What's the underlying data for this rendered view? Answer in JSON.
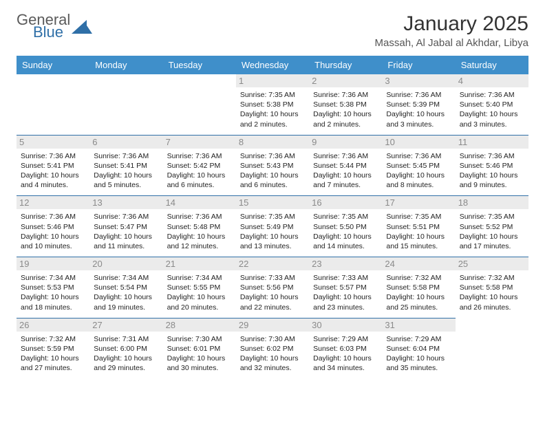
{
  "logo": {
    "general": "General",
    "blue": "Blue",
    "triangle_color": "#2f6fa7"
  },
  "header": {
    "title": "January 2025",
    "location": "Massah, Al Jabal al Akhdar, Libya"
  },
  "colors": {
    "header_bg": "#3f8fca",
    "header_fg": "#ffffff",
    "daynum_bg": "#ebebeb",
    "daynum_fg": "#8a8a8a",
    "row_border": "#2f6fa7",
    "cell_text": "#222222",
    "title_color": "#333333",
    "location_color": "#555555"
  },
  "typography": {
    "title_fontsize": 30,
    "location_fontsize": 15,
    "weekday_fontsize": 13,
    "daynum_fontsize": 13,
    "cell_fontsize": 10.5
  },
  "weekdays": [
    "Sunday",
    "Monday",
    "Tuesday",
    "Wednesday",
    "Thursday",
    "Friday",
    "Saturday"
  ],
  "weeks": [
    [
      null,
      null,
      null,
      {
        "day": "1",
        "sunrise": "Sunrise: 7:35 AM",
        "sunset": "Sunset: 5:38 PM",
        "daylight": "Daylight: 10 hours and 2 minutes."
      },
      {
        "day": "2",
        "sunrise": "Sunrise: 7:36 AM",
        "sunset": "Sunset: 5:38 PM",
        "daylight": "Daylight: 10 hours and 2 minutes."
      },
      {
        "day": "3",
        "sunrise": "Sunrise: 7:36 AM",
        "sunset": "Sunset: 5:39 PM",
        "daylight": "Daylight: 10 hours and 3 minutes."
      },
      {
        "day": "4",
        "sunrise": "Sunrise: 7:36 AM",
        "sunset": "Sunset: 5:40 PM",
        "daylight": "Daylight: 10 hours and 3 minutes."
      }
    ],
    [
      {
        "day": "5",
        "sunrise": "Sunrise: 7:36 AM",
        "sunset": "Sunset: 5:41 PM",
        "daylight": "Daylight: 10 hours and 4 minutes."
      },
      {
        "day": "6",
        "sunrise": "Sunrise: 7:36 AM",
        "sunset": "Sunset: 5:41 PM",
        "daylight": "Daylight: 10 hours and 5 minutes."
      },
      {
        "day": "7",
        "sunrise": "Sunrise: 7:36 AM",
        "sunset": "Sunset: 5:42 PM",
        "daylight": "Daylight: 10 hours and 6 minutes."
      },
      {
        "day": "8",
        "sunrise": "Sunrise: 7:36 AM",
        "sunset": "Sunset: 5:43 PM",
        "daylight": "Daylight: 10 hours and 6 minutes."
      },
      {
        "day": "9",
        "sunrise": "Sunrise: 7:36 AM",
        "sunset": "Sunset: 5:44 PM",
        "daylight": "Daylight: 10 hours and 7 minutes."
      },
      {
        "day": "10",
        "sunrise": "Sunrise: 7:36 AM",
        "sunset": "Sunset: 5:45 PM",
        "daylight": "Daylight: 10 hours and 8 minutes."
      },
      {
        "day": "11",
        "sunrise": "Sunrise: 7:36 AM",
        "sunset": "Sunset: 5:46 PM",
        "daylight": "Daylight: 10 hours and 9 minutes."
      }
    ],
    [
      {
        "day": "12",
        "sunrise": "Sunrise: 7:36 AM",
        "sunset": "Sunset: 5:46 PM",
        "daylight": "Daylight: 10 hours and 10 minutes."
      },
      {
        "day": "13",
        "sunrise": "Sunrise: 7:36 AM",
        "sunset": "Sunset: 5:47 PM",
        "daylight": "Daylight: 10 hours and 11 minutes."
      },
      {
        "day": "14",
        "sunrise": "Sunrise: 7:36 AM",
        "sunset": "Sunset: 5:48 PM",
        "daylight": "Daylight: 10 hours and 12 minutes."
      },
      {
        "day": "15",
        "sunrise": "Sunrise: 7:35 AM",
        "sunset": "Sunset: 5:49 PM",
        "daylight": "Daylight: 10 hours and 13 minutes."
      },
      {
        "day": "16",
        "sunrise": "Sunrise: 7:35 AM",
        "sunset": "Sunset: 5:50 PM",
        "daylight": "Daylight: 10 hours and 14 minutes."
      },
      {
        "day": "17",
        "sunrise": "Sunrise: 7:35 AM",
        "sunset": "Sunset: 5:51 PM",
        "daylight": "Daylight: 10 hours and 15 minutes."
      },
      {
        "day": "18",
        "sunrise": "Sunrise: 7:35 AM",
        "sunset": "Sunset: 5:52 PM",
        "daylight": "Daylight: 10 hours and 17 minutes."
      }
    ],
    [
      {
        "day": "19",
        "sunrise": "Sunrise: 7:34 AM",
        "sunset": "Sunset: 5:53 PM",
        "daylight": "Daylight: 10 hours and 18 minutes."
      },
      {
        "day": "20",
        "sunrise": "Sunrise: 7:34 AM",
        "sunset": "Sunset: 5:54 PM",
        "daylight": "Daylight: 10 hours and 19 minutes."
      },
      {
        "day": "21",
        "sunrise": "Sunrise: 7:34 AM",
        "sunset": "Sunset: 5:55 PM",
        "daylight": "Daylight: 10 hours and 20 minutes."
      },
      {
        "day": "22",
        "sunrise": "Sunrise: 7:33 AM",
        "sunset": "Sunset: 5:56 PM",
        "daylight": "Daylight: 10 hours and 22 minutes."
      },
      {
        "day": "23",
        "sunrise": "Sunrise: 7:33 AM",
        "sunset": "Sunset: 5:57 PM",
        "daylight": "Daylight: 10 hours and 23 minutes."
      },
      {
        "day": "24",
        "sunrise": "Sunrise: 7:32 AM",
        "sunset": "Sunset: 5:58 PM",
        "daylight": "Daylight: 10 hours and 25 minutes."
      },
      {
        "day": "25",
        "sunrise": "Sunrise: 7:32 AM",
        "sunset": "Sunset: 5:58 PM",
        "daylight": "Daylight: 10 hours and 26 minutes."
      }
    ],
    [
      {
        "day": "26",
        "sunrise": "Sunrise: 7:32 AM",
        "sunset": "Sunset: 5:59 PM",
        "daylight": "Daylight: 10 hours and 27 minutes."
      },
      {
        "day": "27",
        "sunrise": "Sunrise: 7:31 AM",
        "sunset": "Sunset: 6:00 PM",
        "daylight": "Daylight: 10 hours and 29 minutes."
      },
      {
        "day": "28",
        "sunrise": "Sunrise: 7:30 AM",
        "sunset": "Sunset: 6:01 PM",
        "daylight": "Daylight: 10 hours and 30 minutes."
      },
      {
        "day": "29",
        "sunrise": "Sunrise: 7:30 AM",
        "sunset": "Sunset: 6:02 PM",
        "daylight": "Daylight: 10 hours and 32 minutes."
      },
      {
        "day": "30",
        "sunrise": "Sunrise: 7:29 AM",
        "sunset": "Sunset: 6:03 PM",
        "daylight": "Daylight: 10 hours and 34 minutes."
      },
      {
        "day": "31",
        "sunrise": "Sunrise: 7:29 AM",
        "sunset": "Sunset: 6:04 PM",
        "daylight": "Daylight: 10 hours and 35 minutes."
      },
      null
    ]
  ]
}
